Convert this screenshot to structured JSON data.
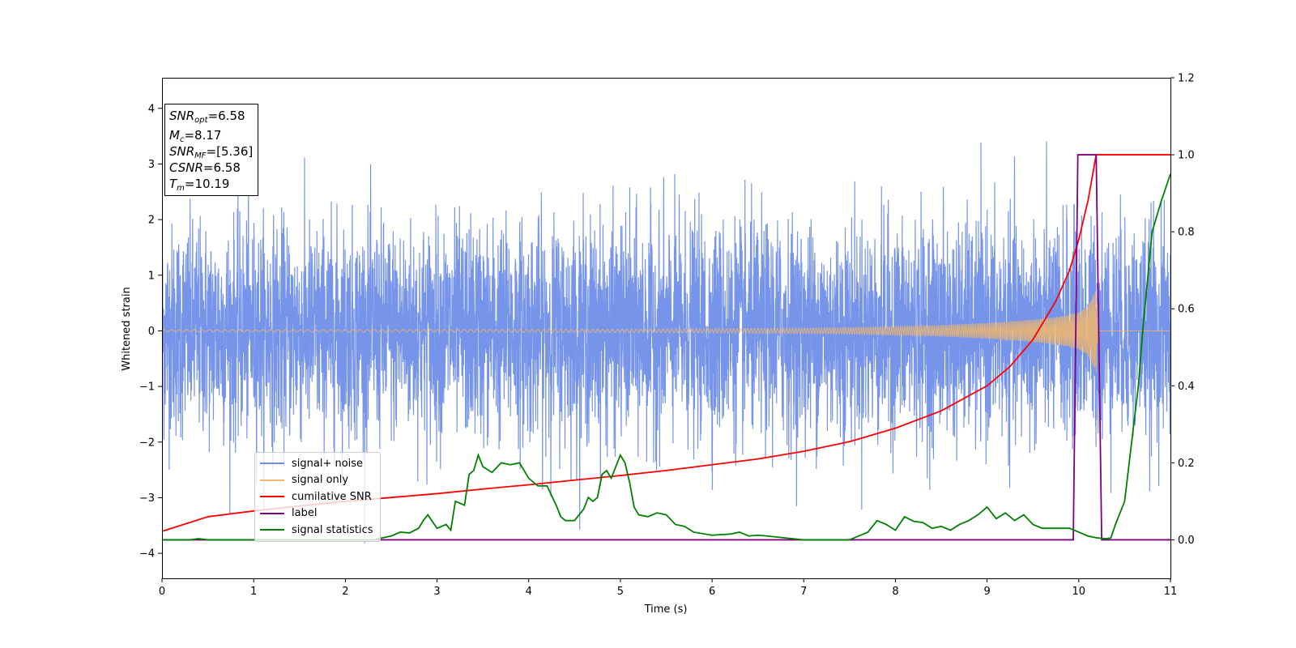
{
  "chart_data": {
    "type": "line",
    "title": "",
    "xlabel": "Time (s)",
    "ylabel": "Whitened strain",
    "xlim": [
      0,
      11
    ],
    "ylim": [
      -4.45,
      4.55
    ],
    "ylim_right": [
      -0.1,
      1.2
    ],
    "x_ticks": [
      "0",
      "1",
      "2",
      "3",
      "4",
      "5",
      "6",
      "7",
      "8",
      "9",
      "10",
      "11"
    ],
    "y_ticks": [
      "4",
      "3",
      "2",
      "1",
      "0",
      "−1",
      "−2",
      "−3",
      "−4"
    ],
    "y_ticks_right": [
      "1.2",
      "1.0",
      "0.8",
      "0.6",
      "0.4",
      "0.2",
      "0.0"
    ],
    "annotation": {
      "snr_opt": {
        "sym": "SNR",
        "sub": "opt",
        "value": "=6.58"
      },
      "mc": {
        "sym": "M",
        "sub": "c",
        "value": "=8.17"
      },
      "snr_mf": {
        "sym": "SNR",
        "sub": "MF",
        "value": "=[5.36]"
      },
      "csnr": {
        "sym": "CSNR",
        "value": "=6.58"
      },
      "tm": {
        "sym": "T",
        "sub": "m",
        "value": "=10.19"
      }
    },
    "series": [
      {
        "name": "signal+ noise",
        "color": "#6f8ee8",
        "axis": "left",
        "description_values": {
          "typical_range": [
            -2.5,
            2.5
          ],
          "extremes": [
            -4.0,
            4.17
          ]
        }
      },
      {
        "name": "signal only",
        "color": "#f2b76b",
        "axis": "left",
        "x": [
          0,
          1,
          2,
          3,
          4,
          5,
          6,
          7,
          7.5,
          8,
          8.5,
          9,
          9.5,
          9.8,
          10.0,
          10.1,
          10.19,
          10.21,
          11
        ],
        "amplitude": [
          0.02,
          0.02,
          0.025,
          0.025,
          0.03,
          0.03,
          0.04,
          0.05,
          0.06,
          0.08,
          0.1,
          0.14,
          0.2,
          0.26,
          0.33,
          0.45,
          0.75,
          0.0,
          0.0
        ]
      },
      {
        "name": "cumilative SNR",
        "color": "#ff0000",
        "axis": "right",
        "x": [
          0,
          0.5,
          1,
          1.5,
          2,
          2.5,
          3,
          3.5,
          4,
          4.5,
          5,
          5.5,
          6,
          6.5,
          7,
          7.5,
          8,
          8.5,
          9,
          9.25,
          9.5,
          9.75,
          9.9,
          10.0,
          10.1,
          10.19,
          11
        ],
        "values": [
          0.022,
          0.06,
          0.075,
          0.088,
          0.1,
          0.11,
          0.12,
          0.132,
          0.143,
          0.155,
          0.167,
          0.18,
          0.195,
          0.21,
          0.23,
          0.255,
          0.29,
          0.335,
          0.4,
          0.45,
          0.52,
          0.62,
          0.7,
          0.78,
          0.88,
          1.0,
          1.0
        ]
      },
      {
        "name": "label",
        "color": "#800080",
        "axis": "right",
        "x": [
          0,
          9.94,
          9.99,
          10.19,
          10.25,
          11
        ],
        "values": [
          0.0,
          0.0,
          1.0,
          1.0,
          0.0,
          0.0
        ]
      },
      {
        "name": "signal statistics",
        "color": "#008000",
        "axis": "right",
        "x": [
          0,
          0.3,
          0.4,
          0.5,
          1.0,
          1.5,
          2.0,
          2.3,
          2.5,
          2.6,
          2.7,
          2.8,
          2.85,
          2.9,
          3.0,
          3.1,
          3.15,
          3.2,
          3.3,
          3.35,
          3.4,
          3.45,
          3.5,
          3.6,
          3.7,
          3.8,
          3.9,
          4.0,
          4.1,
          4.2,
          4.3,
          4.35,
          4.4,
          4.5,
          4.6,
          4.65,
          4.7,
          4.75,
          4.8,
          4.85,
          4.9,
          5.0,
          5.05,
          5.1,
          5.15,
          5.2,
          5.3,
          5.4,
          5.5,
          5.6,
          5.7,
          5.8,
          6.0,
          6.2,
          6.3,
          6.4,
          6.5,
          6.6,
          7.0,
          7.2,
          7.5,
          7.6,
          7.7,
          7.8,
          7.9,
          8.0,
          8.1,
          8.2,
          8.3,
          8.4,
          8.5,
          8.6,
          8.7,
          8.8,
          8.9,
          9.0,
          9.1,
          9.2,
          9.3,
          9.4,
          9.5,
          9.6,
          9.7,
          9.8,
          9.9,
          10.0,
          10.1,
          10.2,
          10.3,
          10.35,
          10.4,
          10.5,
          10.55,
          10.6,
          10.65,
          10.7,
          10.8,
          10.9,
          11.0
        ],
        "values": [
          0.0,
          0.0,
          0.003,
          0.0,
          0.0,
          0.0,
          0.0,
          0.0,
          0.01,
          0.02,
          0.018,
          0.03,
          0.05,
          0.065,
          0.03,
          0.04,
          0.025,
          0.1,
          0.09,
          0.17,
          0.18,
          0.22,
          0.19,
          0.175,
          0.2,
          0.195,
          0.2,
          0.16,
          0.14,
          0.14,
          0.09,
          0.06,
          0.05,
          0.05,
          0.08,
          0.11,
          0.1,
          0.11,
          0.17,
          0.18,
          0.16,
          0.22,
          0.2,
          0.15,
          0.085,
          0.065,
          0.06,
          0.07,
          0.065,
          0.04,
          0.035,
          0.02,
          0.012,
          0.015,
          0.02,
          0.01,
          0.012,
          0.01,
          0.0,
          0.0,
          0.0,
          0.01,
          0.02,
          0.05,
          0.04,
          0.025,
          0.06,
          0.048,
          0.045,
          0.03,
          0.035,
          0.025,
          0.04,
          0.05,
          0.065,
          0.085,
          0.055,
          0.07,
          0.05,
          0.065,
          0.04,
          0.03,
          0.03,
          0.03,
          0.03,
          0.02,
          0.01,
          0.005,
          0.003,
          0.005,
          0.04,
          0.1,
          0.2,
          0.3,
          0.4,
          0.55,
          0.8,
          0.88,
          0.95
        ]
      }
    ],
    "legend_location": "lower left",
    "grid": false
  }
}
